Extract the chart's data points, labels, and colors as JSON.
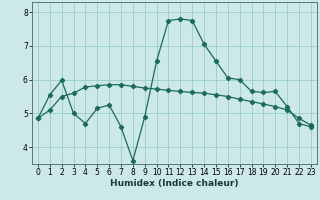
{
  "xlabel": "Humidex (Indice chaleur)",
  "x": [
    0,
    1,
    2,
    3,
    4,
    5,
    6,
    7,
    8,
    9,
    10,
    11,
    12,
    13,
    14,
    15,
    16,
    17,
    18,
    19,
    20,
    21,
    22,
    23
  ],
  "curve1": [
    4.85,
    5.55,
    5.98,
    5.0,
    4.7,
    5.15,
    5.25,
    4.6,
    3.6,
    4.9,
    6.55,
    7.75,
    7.8,
    7.75,
    7.05,
    6.55,
    6.05,
    6.0,
    5.65,
    5.62,
    5.65,
    5.2,
    4.7,
    4.6
  ],
  "flat_line": [
    4.85,
    5.1,
    5.5,
    5.6,
    5.78,
    5.82,
    5.85,
    5.85,
    5.8,
    5.75,
    5.72,
    5.68,
    5.65,
    5.62,
    5.6,
    5.55,
    5.5,
    5.42,
    5.35,
    5.28,
    5.2,
    5.1,
    4.85,
    4.65
  ],
  "line_color": "#1a6b5a",
  "bg_color": "#cce8e8",
  "grid_color": "#99cccc",
  "ylim": [
    3.5,
    8.3
  ],
  "xlim": [
    -0.5,
    23.5
  ],
  "yticks": [
    4,
    5,
    6,
    7,
    8
  ],
  "xticks": [
    0,
    1,
    2,
    3,
    4,
    5,
    6,
    7,
    8,
    9,
    10,
    11,
    12,
    13,
    14,
    15,
    16,
    17,
    18,
    19,
    20,
    21,
    22,
    23
  ]
}
